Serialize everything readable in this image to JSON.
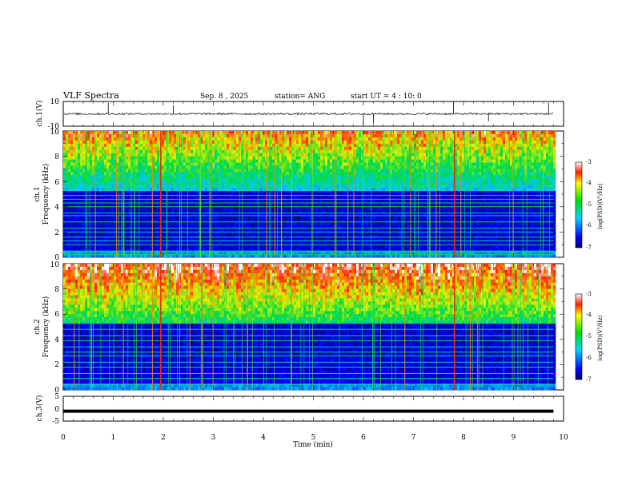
{
  "chart_data": {
    "type": "heatmap",
    "header": {
      "title": "VLF Spectra",
      "date": "Sep. 8 , 2025",
      "station": "station= ANG",
      "start": "start UT =  4 : 10: 0"
    },
    "x_axis": {
      "label": "Time (min)",
      "range": [
        0,
        10
      ],
      "ticks": [
        "0",
        "1",
        "2",
        "3",
        "4",
        "5",
        "6",
        "7",
        "8",
        "9",
        "10"
      ],
      "data_end_min": 9.8
    },
    "panels": [
      {
        "id": "ch1-waveform",
        "type": "line",
        "ylabel": "ch.1(V)",
        "ylim": [
          -10,
          10
        ],
        "ytick_labels": [
          "10",
          "-10"
        ],
        "baseline_v": 0
      },
      {
        "id": "ch1-spectrogram",
        "type": "heatmap",
        "ylabel_top": "ch.1",
        "ylabel": "Frequency (kHz)",
        "ylim": [
          0,
          10
        ],
        "ytick_labels": [
          "0",
          "2",
          "4",
          "6",
          "8",
          "10"
        ],
        "colorbar": {
          "label": "log(PSD)(V²/Hz)",
          "range": [
            -7,
            -3
          ],
          "tick_labels": [
            "-3",
            "-4",
            "-5",
            "-6",
            "-7"
          ]
        },
        "horizontal_lines_khz": [
          0.2,
          0.4,
          0.5,
          1.0,
          1.3,
          1.6,
          2.0,
          2.3,
          2.8,
          3.3,
          3.5,
          4.0,
          4.3,
          4.6,
          4.9
        ],
        "strong_spikes_min": [
          1.95,
          7.82
        ]
      },
      {
        "id": "ch2-spectrogram",
        "type": "heatmap",
        "ylabel_top": "ch.2",
        "ylabel": "Frequency (kHz)",
        "ylim": [
          0,
          10
        ],
        "ytick_labels": [
          "0",
          "2",
          "4",
          "6",
          "8",
          "10"
        ],
        "colorbar": {
          "label": "log(PSD)(V²/Hz)",
          "range": [
            -7,
            -3
          ],
          "tick_labels": [
            "-3",
            "-4",
            "-5",
            "-6",
            "-7"
          ]
        },
        "horizontal_lines_khz": [
          0.4,
          0.9,
          1.3,
          1.8,
          2.2,
          2.7,
          3.0,
          3.4,
          3.9,
          4.3,
          4.8
        ],
        "strong_spikes_min": [
          1.95,
          7.82
        ]
      },
      {
        "id": "ch3-waveform",
        "type": "line",
        "ylabel": "ch.3(V)",
        "ylim": [
          -5,
          5
        ],
        "ytick_labels": [
          "5",
          "0",
          "-5"
        ],
        "baseline_v": -1.0
      }
    ]
  }
}
